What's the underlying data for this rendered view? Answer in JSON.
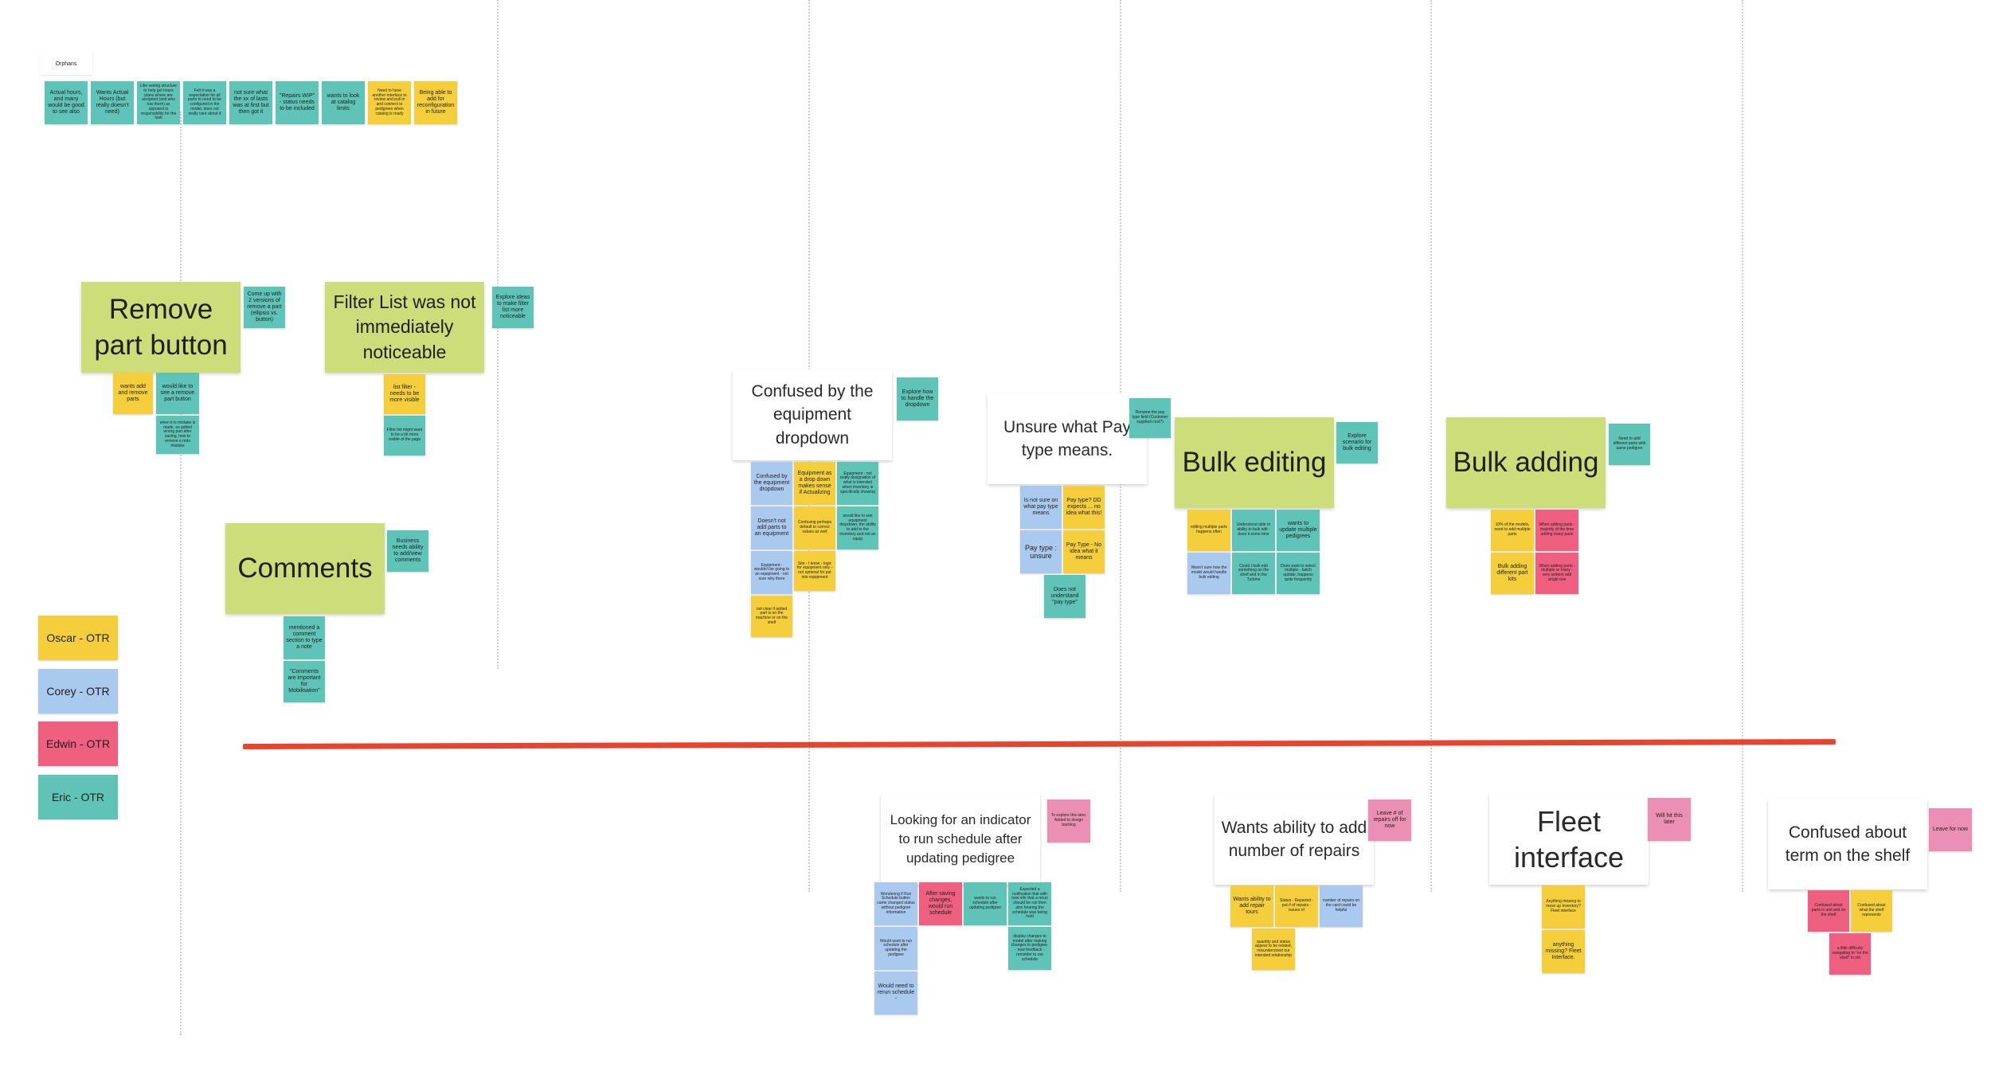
{
  "orphans": {
    "label": "Orphans",
    "notes": [
      "Actual hours, and many would be good to see also",
      "Wants Actual Hours (but really doesn't need)",
      "Like seeing structure to help get hours plans where are assigned (and who has them) as opposed to responsibility for the task",
      "Felt it was a expectation for all parts to need to be configured in the model, does not really care about it ",
      "not sure what the xx of lasts was at first but then got it",
      "\"Repairs WIP\" - status needs to be included",
      "wants to look at catalog limits",
      "Need to have another interface to review and pull in and connect to pedigrees when catalog is ready",
      "Being able to add for reconfiguration in future"
    ]
  },
  "legend": [
    {
      "label": "Oscar - OTR",
      "color": "#f5cf3b"
    },
    {
      "label": "Corey - OTR",
      "color": "#a9c9ee"
    },
    {
      "label": "Edwin - OTR",
      "color": "#ee5f80"
    },
    {
      "label": "Eric - OTR",
      "color": "#5fc4b8"
    }
  ],
  "groups": {
    "remove_part": {
      "title": "Remove part button",
      "action": "Come up with 2 versions of remove a part (ellipsis vs. button)",
      "notes": [
        "wants add and remove parts",
        "would like to see a remove part button",
        "when it is mistake is made, so added wrong part after saving, how to remove a redo mistake"
      ]
    },
    "filter_list": {
      "title": "Filter List was not immediately noticeable",
      "action": "Explore ideas to make filter list more noticeable",
      "notes": [
        "list filter - needs to be more visible",
        "Filter list might want to be a bit more visible of the page"
      ]
    },
    "comments": {
      "title": "Comments",
      "action": "Business needs ability to add/view comments",
      "notes": [
        "mentioned a comment section to type a note",
        "\"Comments are important for Mobilisation\""
      ]
    },
    "equipment": {
      "title": "Confused by the equipment dropdown",
      "action": "Explore how to handle the dropdown",
      "notes": [
        "Confused by the equipment dropdown",
        "Equipment as a drop down makes sense if Actualizing",
        "Equipment - not really designation of what is intended when inventory is specifically showing",
        "Doesn't not add parts to an equipment",
        "Confusing perhaps default to correct values as well",
        "would like to see equipment dropdown, the ability to add to the inventory and not an equip",
        "Equipment - wouldn't be going to an equipment - not sure why there",
        "Site - I know - logic for equipment only - not optional for put into equipment",
        "not clear if added part is on the machine or on the shelf"
      ]
    },
    "pay_type": {
      "title": "Unsure what Pay type means.",
      "action": "Rename the pay type field (Customer supplied cost?)",
      "notes": [
        "Is not sure on what pay type means",
        "Pay type? DD expects ... no idea what this!",
        "Pay type : unsure",
        "Pay Type - No idea what it means",
        "Does not understand \"pay type\""
      ]
    },
    "bulk_editing": {
      "title": "Bulk editing",
      "action": "Explore scenario for bulk editing",
      "notes": [
        "editing multiple parts happens often",
        "Understood able to ability to bulk edit - does it some time",
        "wants to update multiple pedigrees",
        "Wasn't sure how the model would handle bulk editing",
        "Could I bulk edit something on the shelf and in the Turbine",
        "Does want to select multiple - batch update, happens quite frequently"
      ]
    },
    "bulk_adding": {
      "title": "Bulk adding",
      "action": "Need to add different parts with same pedigree",
      "notes": [
        "10% of the models, need to add multiple parts",
        "When adding parts - majority of the time adding many parts",
        "Bulk adding different part kits",
        "When adding parts - multiple or many - very seldom add single one"
      ]
    },
    "indicator": {
      "title": "Looking for an indicator to run schedule after updating pedigree",
      "action": "To explore this later. Added to design backlog",
      "notes": [
        "Wondering if Run Schedule button came changed status without pedigree information",
        "After saving changes, would run schedule",
        "wants to run schedule after updating pedigree",
        "Expected a notification that with new info that a rerun should be run then also hearing the schedule was being hold",
        "Would want to run schedule after updating the pedigree",
        "display changes to model after making changes to pedigree. - new feedback - reminder to run schedule",
        "Would need to rerun schedule -"
      ]
    },
    "repairs": {
      "title": "Wants ability to add number of repairs",
      "action": "Leave # of repairs off for now",
      "notes": [
        "Wants ability to add repair tours",
        "Status - Repaired - put # of repairs - issues of",
        "number of repairs on the card could be helpful",
        "quantity and status appear to be related, misunderstood our intended relationship"
      ]
    },
    "fleet": {
      "title": "Fleet interface",
      "action": "Will hit this later",
      "notes": [
        "Anything missing to mess up Inventory? Fleet interface",
        "anything missing? Fleet Interface."
      ]
    },
    "shelf": {
      "title": "Confused about term on the shelf",
      "action": "Leave for now",
      "notes": [
        "Confused about parts in unit and on the shelf",
        "Confused about what the shelf represents",
        "a little difficulty navigating to \"on the shelf\" in old"
      ]
    }
  }
}
